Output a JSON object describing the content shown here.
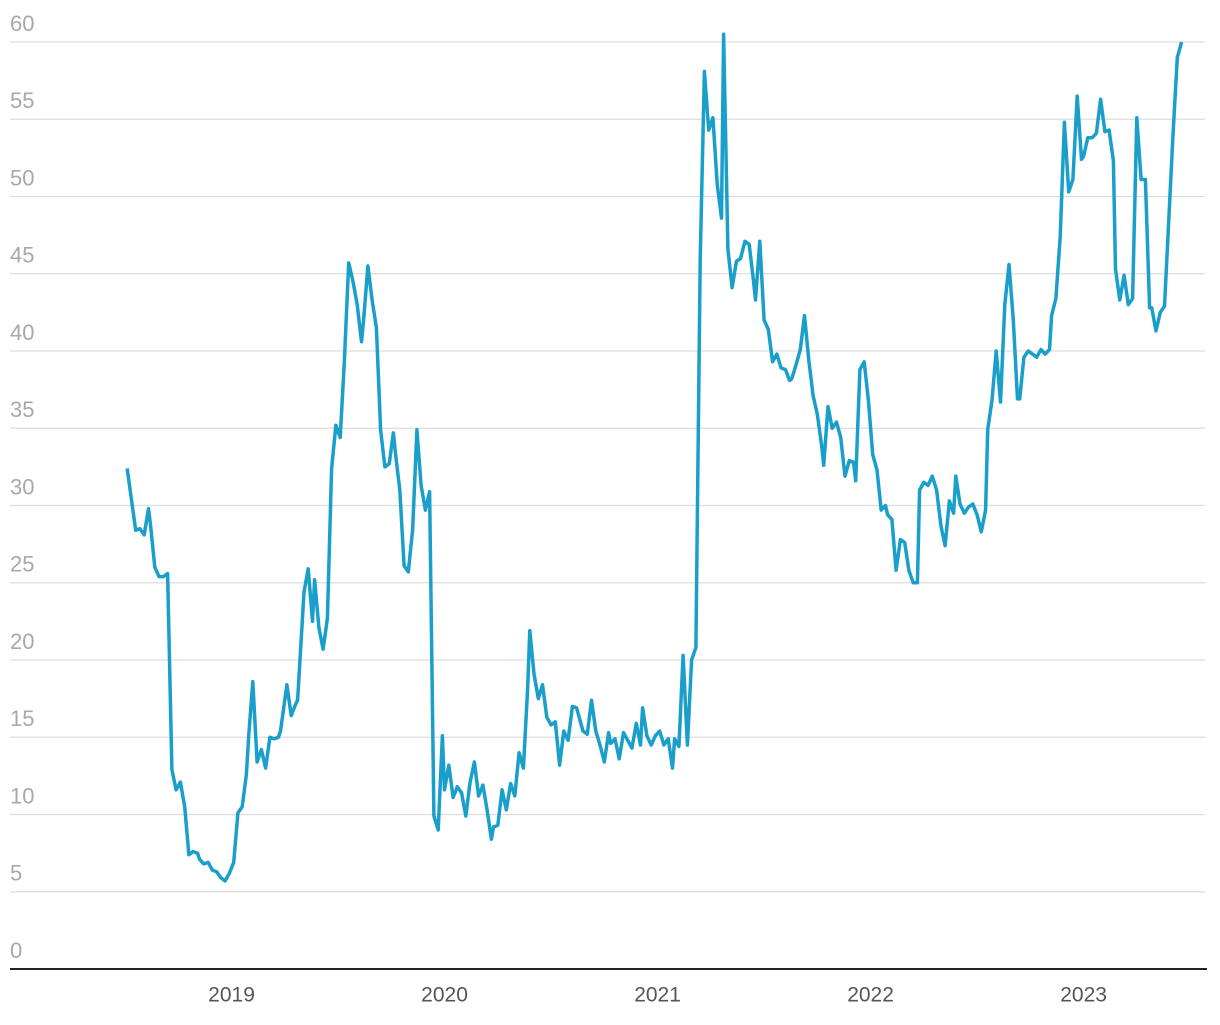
{
  "chart_data": {
    "type": "line",
    "grid": true,
    "xlim": [
      2017.96,
      2023.57
    ],
    "xticks": [
      2019,
      2020,
      2021,
      2022,
      2023
    ],
    "ylim": [
      0,
      60
    ],
    "yticks": [
      0,
      5,
      10,
      15,
      20,
      25,
      30,
      35,
      40,
      45,
      50,
      55,
      60
    ],
    "x": [
      2018.51,
      2018.53,
      2018.55,
      2018.57,
      2018.59,
      2018.61,
      2018.62,
      2018.64,
      2018.66,
      2018.68,
      2018.7,
      2018.72,
      2018.74,
      2018.76,
      2018.78,
      2018.8,
      2018.82,
      2018.84,
      2018.85,
      2018.87,
      2018.89,
      2018.91,
      2018.93,
      2018.95,
      2018.97,
      2018.99,
      2019.01,
      2019.03,
      2019.05,
      2019.07,
      2019.08,
      2019.1,
      2019.12,
      2019.14,
      2019.16,
      2019.18,
      2019.2,
      2019.22,
      2019.23,
      2019.26,
      2019.28,
      2019.3,
      2019.31,
      2019.34,
      2019.36,
      2019.38,
      2019.39,
      2019.41,
      2019.43,
      2019.45,
      2019.47,
      2019.49,
      2019.51,
      2019.53,
      2019.55,
      2019.57,
      2019.59,
      2019.61,
      2019.62,
      2019.64,
      2019.66,
      2019.68,
      2019.7,
      2019.72,
      2019.74,
      2019.76,
      2019.77,
      2019.79,
      2019.81,
      2019.83,
      2019.85,
      2019.87,
      2019.89,
      2019.91,
      2019.93,
      2019.95,
      2019.97,
      2019.99,
      2020.0,
      2020.02,
      2020.04,
      2020.06,
      2020.08,
      2020.1,
      2020.12,
      2020.14,
      2020.16,
      2020.18,
      2020.2,
      2020.22,
      2020.23,
      2020.25,
      2020.27,
      2020.29,
      2020.31,
      2020.33,
      2020.35,
      2020.37,
      2020.39,
      2020.4,
      2020.42,
      2020.44,
      2020.46,
      2020.48,
      2020.5,
      2020.52,
      2020.54,
      2020.56,
      2020.58,
      2020.6,
      2020.62,
      2020.63,
      2020.65,
      2020.67,
      2020.69,
      2020.71,
      2020.73,
      2020.75,
      2020.77,
      2020.78,
      2020.8,
      2020.82,
      2020.84,
      2020.86,
      2020.88,
      2020.9,
      2020.92,
      2020.93,
      2020.95,
      2020.97,
      2020.99,
      2021.01,
      2021.03,
      2021.05,
      2021.07,
      2021.08,
      2021.1,
      2021.12,
      2021.14,
      2021.16,
      2021.18,
      2021.2,
      2021.22,
      2021.24,
      2021.26,
      2021.28,
      2021.3,
      2021.31,
      2021.33,
      2021.35,
      2021.37,
      2021.39,
      2021.41,
      2021.43,
      2021.45,
      2021.46,
      2021.48,
      2021.5,
      2021.52,
      2021.54,
      2021.56,
      2021.58,
      2021.6,
      2021.62,
      2021.63,
      2021.65,
      2021.67,
      2021.69,
      2021.71,
      2021.73,
      2021.75,
      2021.77,
      2021.78,
      2021.8,
      2021.82,
      2021.84,
      2021.86,
      2021.88,
      2021.9,
      2021.92,
      2021.93,
      2021.95,
      2021.97,
      2021.99,
      2022.01,
      2022.03,
      2022.05,
      2022.07,
      2022.08,
      2022.1,
      2022.12,
      2022.14,
      2022.16,
      2022.18,
      2022.2,
      2022.22,
      2022.23,
      2022.25,
      2022.27,
      2022.29,
      2022.31,
      2022.33,
      2022.35,
      2022.37,
      2022.39,
      2022.4,
      2022.42,
      2022.44,
      2022.46,
      2022.48,
      2022.5,
      2022.52,
      2022.54,
      2022.55,
      2022.57,
      2022.59,
      2022.61,
      2022.63,
      2022.65,
      2022.67,
      2022.69,
      2022.7,
      2022.72,
      2022.74,
      2022.76,
      2022.78,
      2022.8,
      2022.82,
      2022.84,
      2022.85,
      2022.87,
      2022.89,
      2022.91,
      2022.93,
      2022.95,
      2022.97,
      2022.99,
      2023.0,
      2023.02,
      2023.04,
      2023.06,
      2023.08,
      2023.1,
      2023.12,
      2023.14,
      2023.15,
      2023.17,
      2023.19,
      2023.21,
      2023.23,
      2023.25,
      2023.27,
      2023.29,
      2023.31,
      2023.32,
      2023.34,
      2023.36,
      2023.38,
      2023.42,
      2023.44,
      2023.46
    ],
    "series": [
      {
        "color": "#1a9fcb",
        "values": [
          32.4,
          30.4,
          28.4,
          28.5,
          28.1,
          29.8,
          28.7,
          26.0,
          25.4,
          25.4,
          25.6,
          12.9,
          11.6,
          12.1,
          10.5,
          7.4,
          7.6,
          7.5,
          7.1,
          6.8,
          6.9,
          6.4,
          6.3,
          5.9,
          5.7,
          6.2,
          6.9,
          10.1,
          10.5,
          12.6,
          15.0,
          18.6,
          13.4,
          14.2,
          13.0,
          15.0,
          14.9,
          15.0,
          15.4,
          18.4,
          16.4,
          17.1,
          17.4,
          24.4,
          25.9,
          22.5,
          25.2,
          22.1,
          20.7,
          22.7,
          32.4,
          35.2,
          34.4,
          39.4,
          45.7,
          44.5,
          43.0,
          40.6,
          42.0,
          45.5,
          43.3,
          41.5,
          34.9,
          32.5,
          32.7,
          34.7,
          33.3,
          31.0,
          26.1,
          25.7,
          28.4,
          34.9,
          31.3,
          29.7,
          30.9,
          9.9,
          9.0,
          15.1,
          11.6,
          13.2,
          11.1,
          11.8,
          11.4,
          9.9,
          12.1,
          13.4,
          11.2,
          11.9,
          10.3,
          8.4,
          9.2,
          9.3,
          11.6,
          10.3,
          12.0,
          11.2,
          14.0,
          13.0,
          18.1,
          21.9,
          19.1,
          17.5,
          18.4,
          16.3,
          15.8,
          16.0,
          13.2,
          15.4,
          14.8,
          17.0,
          16.9,
          16.4,
          15.4,
          15.2,
          17.4,
          15.4,
          14.5,
          13.4,
          15.3,
          14.6,
          14.9,
          13.6,
          15.3,
          14.8,
          14.3,
          15.9,
          14.5,
          16.9,
          15.1,
          14.5,
          15.1,
          15.4,
          14.5,
          14.9,
          13.0,
          14.9,
          14.4,
          20.3,
          14.5,
          20.0,
          20.8,
          45.9,
          58.1,
          54.3,
          55.1,
          50.8,
          48.6,
          60.5,
          46.6,
          44.1,
          45.8,
          46.0,
          47.1,
          46.9,
          44.6,
          43.3,
          47.1,
          42.0,
          41.4,
          39.3,
          39.8,
          38.9,
          38.8,
          38.1,
          38.2,
          39.1,
          40.1,
          42.3,
          39.4,
          37.1,
          35.9,
          33.9,
          32.6,
          36.4,
          35.0,
          35.4,
          34.4,
          31.9,
          32.9,
          32.8,
          31.6,
          38.8,
          39.3,
          36.8,
          33.3,
          32.3,
          29.7,
          30.0,
          29.4,
          29.1,
          25.8,
          27.8,
          27.6,
          25.8,
          25.0,
          25.0,
          31.0,
          31.5,
          31.3,
          31.9,
          31.0,
          28.7,
          27.4,
          30.3,
          29.5,
          31.9,
          30.1,
          29.5,
          29.9,
          30.1,
          29.4,
          28.3,
          29.7,
          34.9,
          36.8,
          40.0,
          36.7,
          43.0,
          45.6,
          42.0,
          36.9,
          36.9,
          39.6,
          40.0,
          39.8,
          39.6,
          40.1,
          39.8,
          40.1,
          42.3,
          43.4,
          47.4,
          54.8,
          50.3,
          51.1,
          56.5,
          52.4,
          52.6,
          53.8,
          53.8,
          54.1,
          56.3,
          54.2,
          54.3,
          52.3,
          45.3,
          43.3,
          44.9,
          43.0,
          43.4,
          55.1,
          51.1,
          51.1,
          42.8,
          42.8,
          41.3,
          42.5,
          42.9,
          54.0,
          59.0,
          60.0
        ]
      }
    ]
  }
}
